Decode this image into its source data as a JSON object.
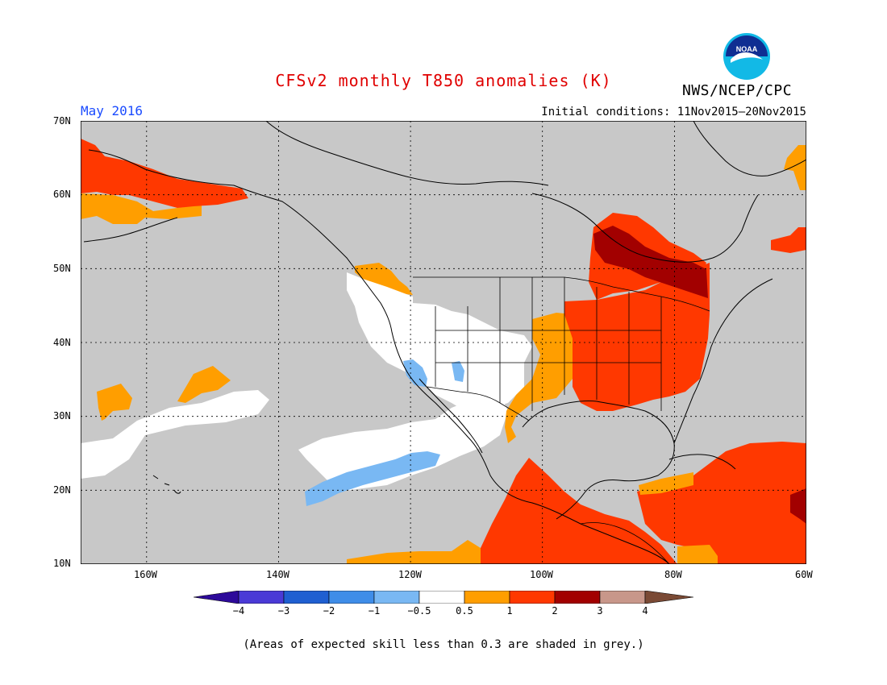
{
  "header": {
    "title": "CFSv2 monthly T850 anomalies (K)",
    "org": "NWS/NCEP/CPC",
    "period": "May 2016",
    "initial_conditions": "Initial conditions: 11Nov2015—20Nov2015",
    "logo_text": "NOAA",
    "logo_icon": "noaa-logo-icon"
  },
  "map": {
    "region": "North America",
    "lon_range": [
      -170,
      -60
    ],
    "lat_range": [
      10,
      70
    ],
    "lat_labels": [
      "70N",
      "60N",
      "50N",
      "40N",
      "30N",
      "20N",
      "10N"
    ],
    "lon_labels": [
      "160W",
      "140W",
      "120W",
      "100W",
      "80W",
      "60W"
    ]
  },
  "colorbar": {
    "labels": [
      "−4",
      "−3",
      "−2",
      "−1",
      "−0.5",
      "0.5",
      "1",
      "2",
      "3",
      "4"
    ],
    "colors": [
      "#2d0a9a",
      "#4a3ad6",
      "#1f5fd1",
      "#3f8de8",
      "#79b8f3",
      "#ffffff",
      "#ff9e00",
      "#ff3800",
      "#a20000",
      "#c8978a",
      "#7a4a35"
    ],
    "insignificant_color": "#c8c8c8"
  },
  "footnote": "(Areas of expected skill less than 0.3 are shaded in grey.)"
}
